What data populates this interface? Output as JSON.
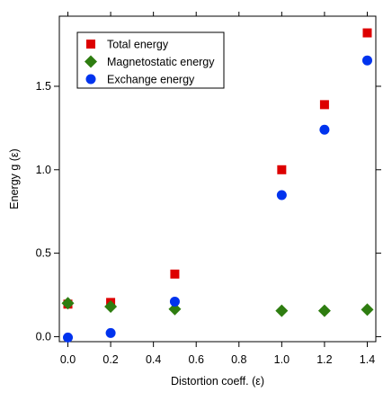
{
  "chart_data": {
    "type": "scatter",
    "title": "",
    "xlabel": "Distortion coeff. (ε)",
    "ylabel": "Energy g (ε)",
    "xlim": [
      -0.04,
      1.44
    ],
    "ylim": [
      -0.03,
      1.92
    ],
    "xticks": [
      "0.0",
      "0.2",
      "0.4",
      "0.6",
      "0.8",
      "1.0",
      "1.2",
      "1.4"
    ],
    "yticks": [
      "0.0",
      "0.5",
      "1.0",
      "1.5"
    ],
    "grid": false,
    "legend_position": "top-left",
    "series": [
      {
        "name": "Total energy",
        "marker": "square",
        "color": "#dd0000",
        "points": [
          {
            "x": 0.0,
            "y": 0.195
          },
          {
            "x": 0.2,
            "y": 0.205
          },
          {
            "x": 0.5,
            "y": 0.375
          },
          {
            "x": 1.0,
            "y": 1.0
          },
          {
            "x": 1.2,
            "y": 1.39
          },
          {
            "x": 1.4,
            "y": 1.82
          }
        ]
      },
      {
        "name": "Magnetostatic energy",
        "marker": "diamond",
        "color": "#2e7d10",
        "points": [
          {
            "x": 0.0,
            "y": 0.2
          },
          {
            "x": 0.2,
            "y": 0.18
          },
          {
            "x": 0.5,
            "y": 0.165
          },
          {
            "x": 1.0,
            "y": 0.155
          },
          {
            "x": 1.2,
            "y": 0.155
          },
          {
            "x": 1.4,
            "y": 0.162
          }
        ]
      },
      {
        "name": "Exchange energy",
        "marker": "circle",
        "color": "#0033ee",
        "points": [
          {
            "x": 0.0,
            "y": -0.005
          },
          {
            "x": 0.2,
            "y": 0.022
          },
          {
            "x": 0.5,
            "y": 0.21
          },
          {
            "x": 1.0,
            "y": 0.848
          },
          {
            "x": 1.2,
            "y": 1.24
          },
          {
            "x": 1.4,
            "y": 1.655
          }
        ]
      }
    ]
  }
}
